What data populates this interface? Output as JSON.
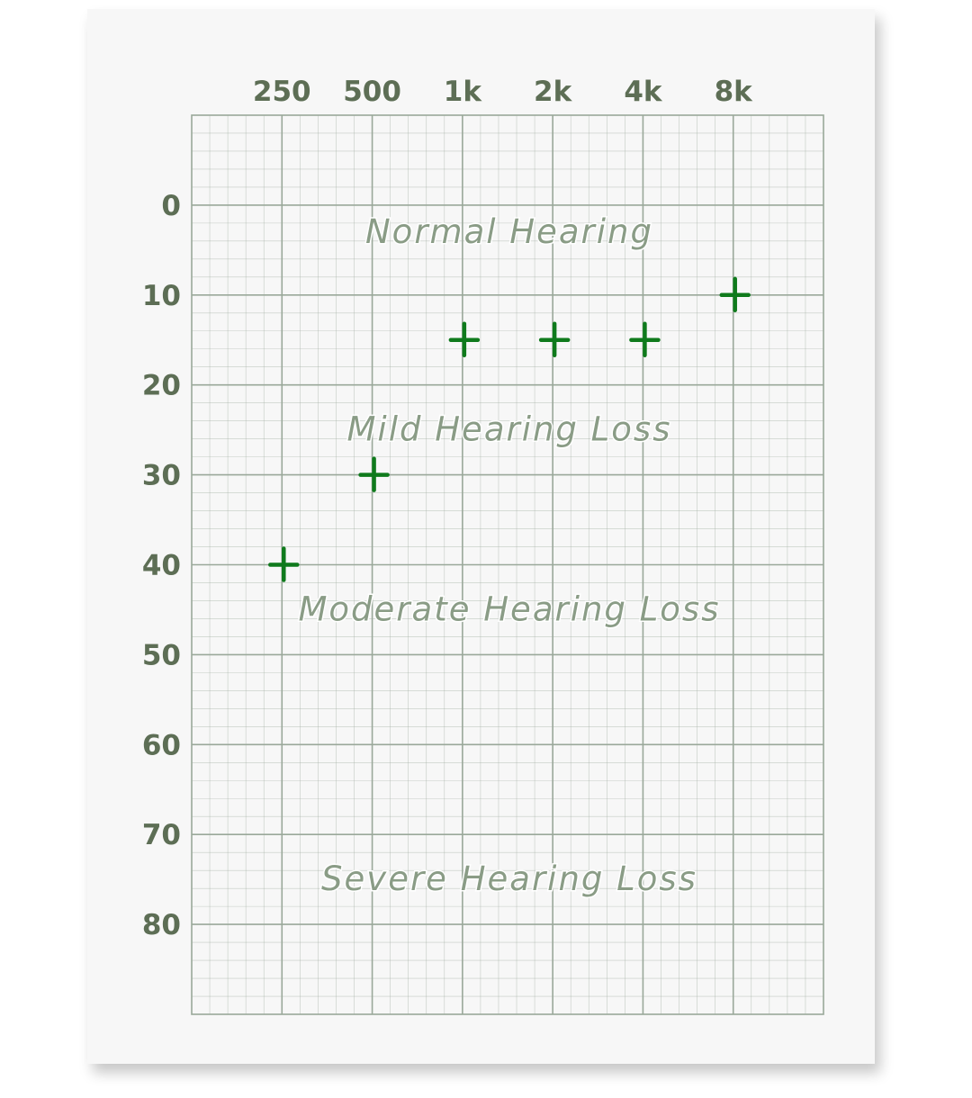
{
  "chart_data": {
    "type": "scatter",
    "title": "",
    "xlabel": "",
    "ylabel": "",
    "x_tick_labels": [
      "250",
      "500",
      "1k",
      "2k",
      "4k",
      "8k"
    ],
    "y_tick_labels": [
      "0",
      "10",
      "20",
      "30",
      "40",
      "50",
      "60",
      "70",
      "80"
    ],
    "ylim": [
      -10,
      90
    ],
    "y_inverted": true,
    "grid": true,
    "marker": "+",
    "marker_color": "#0f7a1c",
    "grid_color": "#9aa89a",
    "zones": [
      {
        "label": "Normal Hearing",
        "y": 3
      },
      {
        "label": "Mild Hearing Loss",
        "y": 25
      },
      {
        "label": "Moderate Hearing Loss",
        "y": 45
      },
      {
        "label": "Severe Hearing Loss",
        "y": 75
      }
    ],
    "points": [
      {
        "x": "250",
        "y": 40
      },
      {
        "x": "500",
        "y": 30
      },
      {
        "x": "1k",
        "y": 15
      },
      {
        "x": "2k",
        "y": 15
      },
      {
        "x": "4k",
        "y": 15
      },
      {
        "x": "8k",
        "y": 10
      }
    ]
  }
}
